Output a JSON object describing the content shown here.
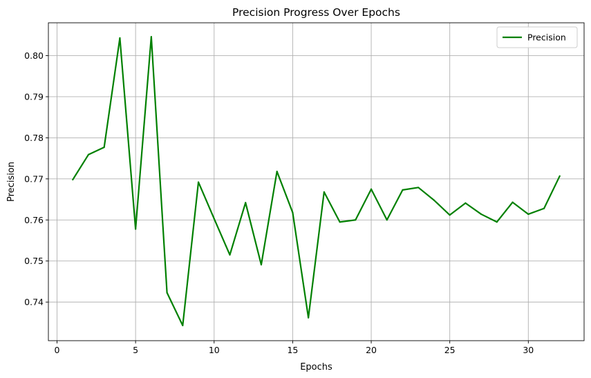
{
  "chart_data": {
    "type": "line",
    "title": "Precision Progress Over Epochs",
    "xlabel": "Epochs",
    "ylabel": "Precision",
    "xlim": [
      -0.55,
      33.55
    ],
    "ylim": [
      0.7306,
      0.808
    ],
    "xticks": [
      0,
      5,
      10,
      15,
      20,
      25,
      30
    ],
    "yticks": [
      0.74,
      0.75,
      0.76,
      0.77,
      0.78,
      0.79,
      0.8
    ],
    "ytick_labels": [
      "0.74",
      "0.75",
      "0.76",
      "0.77",
      "0.78",
      "0.79",
      "0.80"
    ],
    "grid": true,
    "legend_position": "top-right",
    "series": [
      {
        "name": "Precision",
        "color": "#008000",
        "x": [
          1,
          2,
          3,
          4,
          5,
          6,
          7,
          8,
          9,
          10,
          11,
          12,
          13,
          14,
          15,
          16,
          17,
          18,
          19,
          20,
          21,
          22,
          23,
          24,
          25,
          26,
          27,
          28,
          29,
          30,
          31,
          32
        ],
        "y": [
          0.7698,
          0.7759,
          0.7777,
          0.8043,
          0.7578,
          0.8046,
          0.7423,
          0.7343,
          0.7692,
          0.7603,
          0.7515,
          0.7642,
          0.7491,
          0.7718,
          0.7618,
          0.7362,
          0.7668,
          0.7595,
          0.76,
          0.7675,
          0.76,
          0.7673,
          0.7679,
          0.7648,
          0.7612,
          0.7641,
          0.7614,
          0.7595,
          0.7643,
          0.7614,
          0.7628,
          0.7707
        ]
      }
    ]
  }
}
